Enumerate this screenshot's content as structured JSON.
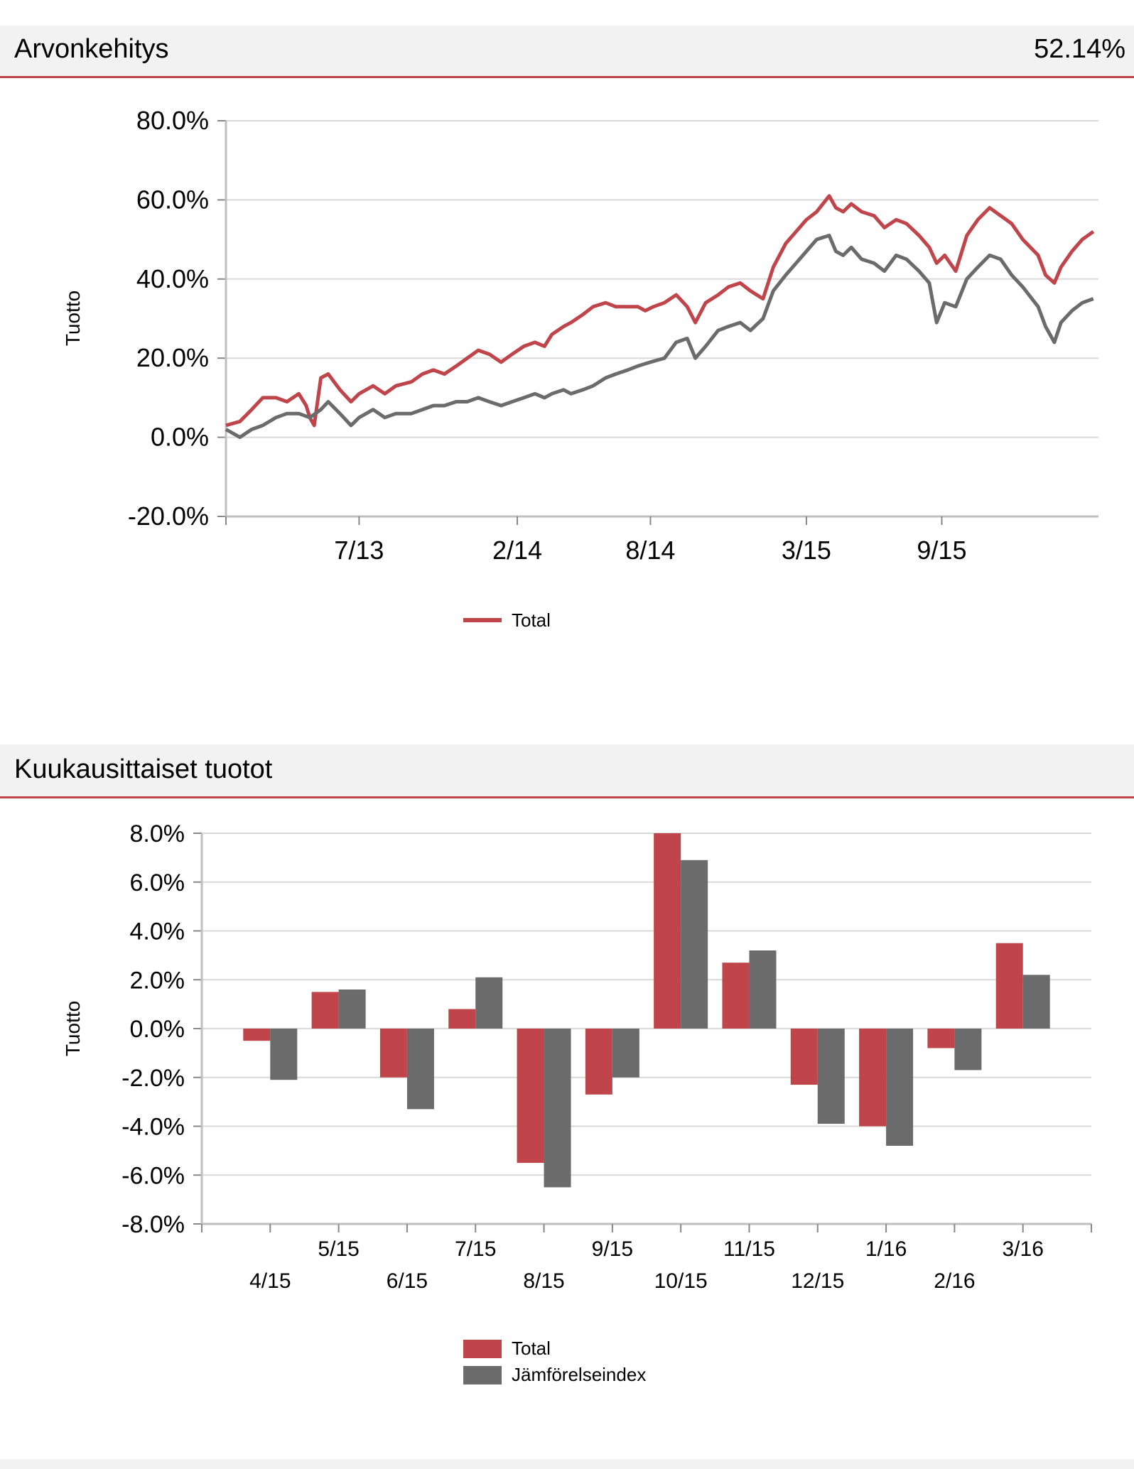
{
  "section1": {
    "title": "Arvonkehitys",
    "value": "52.14%"
  },
  "section2": {
    "title": "Kuukausittaiset tuotot"
  },
  "colors": {
    "total": "#c0454a",
    "index": "#6b6b6b",
    "grid": "#d9d9d9",
    "axis": "#bfbfbf",
    "header_bg": "#f2f2f2",
    "header_rule": "#c0454a"
  },
  "chart_data": [
    {
      "type": "line",
      "ylabel": "Tuotto",
      "ylim": [
        -20,
        80
      ],
      "yticks": [
        "80.0%",
        "60.0%",
        "40.0%",
        "20.0%",
        "0.0%",
        "-20.0%"
      ],
      "ytick_values": [
        80,
        60,
        40,
        20,
        0,
        -20
      ],
      "x_tick_labels": [
        "7/13",
        "2/14",
        "8/14",
        "3/15",
        "9/15"
      ],
      "x_tick_dates": [
        "2013-07-01",
        "2014-02-01",
        "2014-08-01",
        "2015-03-01",
        "2015-09-01"
      ],
      "x_range": [
        "2013-01-01",
        "2016-04-01"
      ],
      "grid": true,
      "legend": "bottom-center",
      "series": [
        {
          "name": "Total",
          "points": [
            [
              "2013-01-01",
              3
            ],
            [
              "2013-01-20",
              4
            ],
            [
              "2013-02-05",
              7
            ],
            [
              "2013-02-20",
              10
            ],
            [
              "2013-03-10",
              10
            ],
            [
              "2013-03-25",
              9
            ],
            [
              "2013-04-10",
              11
            ],
            [
              "2013-04-20",
              8
            ],
            [
              "2013-04-25",
              5
            ],
            [
              "2013-05-01",
              3
            ],
            [
              "2013-05-10",
              15
            ],
            [
              "2013-05-20",
              16
            ],
            [
              "2013-06-05",
              12
            ],
            [
              "2013-06-20",
              9
            ],
            [
              "2013-07-01",
              11
            ],
            [
              "2013-07-20",
              13
            ],
            [
              "2013-08-05",
              11
            ],
            [
              "2013-08-20",
              13
            ],
            [
              "2013-09-10",
              14
            ],
            [
              "2013-09-25",
              16
            ],
            [
              "2013-10-10",
              17
            ],
            [
              "2013-10-25",
              16
            ],
            [
              "2013-11-10",
              18
            ],
            [
              "2013-11-25",
              20
            ],
            [
              "2013-12-10",
              22
            ],
            [
              "2013-12-25",
              21
            ],
            [
              "2014-01-10",
              19
            ],
            [
              "2014-01-25",
              21
            ],
            [
              "2014-02-10",
              23
            ],
            [
              "2014-02-25",
              24
            ],
            [
              "2014-03-10",
              23
            ],
            [
              "2014-03-20",
              26
            ],
            [
              "2014-04-05",
              28
            ],
            [
              "2014-04-15",
              29
            ],
            [
              "2014-05-01",
              31
            ],
            [
              "2014-05-15",
              33
            ],
            [
              "2014-06-01",
              34
            ],
            [
              "2014-06-15",
              33
            ],
            [
              "2014-07-01",
              33
            ],
            [
              "2014-07-15",
              33
            ],
            [
              "2014-07-25",
              32
            ],
            [
              "2014-08-05",
              33
            ],
            [
              "2014-08-20",
              34
            ],
            [
              "2014-09-05",
              36
            ],
            [
              "2014-09-20",
              33
            ],
            [
              "2014-10-01",
              29
            ],
            [
              "2014-10-15",
              34
            ],
            [
              "2014-11-01",
              36
            ],
            [
              "2014-11-15",
              38
            ],
            [
              "2014-12-01",
              39
            ],
            [
              "2014-12-15",
              37
            ],
            [
              "2015-01-01",
              35
            ],
            [
              "2015-01-15",
              43
            ],
            [
              "2015-02-01",
              49
            ],
            [
              "2015-02-15",
              52
            ],
            [
              "2015-03-01",
              55
            ],
            [
              "2015-03-15",
              57
            ],
            [
              "2015-04-01",
              61
            ],
            [
              "2015-04-10",
              58
            ],
            [
              "2015-04-20",
              57
            ],
            [
              "2015-05-01",
              59
            ],
            [
              "2015-05-15",
              57
            ],
            [
              "2015-06-01",
              56
            ],
            [
              "2015-06-15",
              53
            ],
            [
              "2015-07-01",
              55
            ],
            [
              "2015-07-15",
              54
            ],
            [
              "2015-08-01",
              51
            ],
            [
              "2015-08-15",
              48
            ],
            [
              "2015-08-25",
              44
            ],
            [
              "2015-09-05",
              46
            ],
            [
              "2015-09-20",
              42
            ],
            [
              "2015-10-05",
              51
            ],
            [
              "2015-10-20",
              55
            ],
            [
              "2015-11-05",
              58
            ],
            [
              "2015-11-20",
              56
            ],
            [
              "2015-12-05",
              54
            ],
            [
              "2015-12-20",
              50
            ],
            [
              "2016-01-10",
              46
            ],
            [
              "2016-01-20",
              41
            ],
            [
              "2016-02-01",
              39
            ],
            [
              "2016-02-10",
              43
            ],
            [
              "2016-02-25",
              47
            ],
            [
              "2016-03-10",
              50
            ],
            [
              "2016-03-25",
              52
            ]
          ]
        },
        {
          "name": "Jämförelseindex",
          "points": [
            [
              "2013-01-01",
              2
            ],
            [
              "2013-01-20",
              0
            ],
            [
              "2013-02-05",
              2
            ],
            [
              "2013-02-20",
              3
            ],
            [
              "2013-03-10",
              5
            ],
            [
              "2013-03-25",
              6
            ],
            [
              "2013-04-10",
              6
            ],
            [
              "2013-04-25",
              5
            ],
            [
              "2013-05-10",
              7
            ],
            [
              "2013-05-20",
              9
            ],
            [
              "2013-06-05",
              6
            ],
            [
              "2013-06-20",
              3
            ],
            [
              "2013-07-01",
              5
            ],
            [
              "2013-07-20",
              7
            ],
            [
              "2013-08-05",
              5
            ],
            [
              "2013-08-20",
              6
            ],
            [
              "2013-09-10",
              6
            ],
            [
              "2013-09-25",
              7
            ],
            [
              "2013-10-10",
              8
            ],
            [
              "2013-10-25",
              8
            ],
            [
              "2013-11-10",
              9
            ],
            [
              "2013-11-25",
              9
            ],
            [
              "2013-12-10",
              10
            ],
            [
              "2013-12-25",
              9
            ],
            [
              "2014-01-10",
              8
            ],
            [
              "2014-01-25",
              9
            ],
            [
              "2014-02-10",
              10
            ],
            [
              "2014-02-25",
              11
            ],
            [
              "2014-03-10",
              10
            ],
            [
              "2014-03-20",
              11
            ],
            [
              "2014-04-05",
              12
            ],
            [
              "2014-04-15",
              11
            ],
            [
              "2014-05-01",
              12
            ],
            [
              "2014-05-15",
              13
            ],
            [
              "2014-06-01",
              15
            ],
            [
              "2014-06-15",
              16
            ],
            [
              "2014-07-01",
              17
            ],
            [
              "2014-07-15",
              18
            ],
            [
              "2014-08-01",
              19
            ],
            [
              "2014-08-20",
              20
            ],
            [
              "2014-09-05",
              24
            ],
            [
              "2014-09-20",
              25
            ],
            [
              "2014-10-01",
              20
            ],
            [
              "2014-10-15",
              23
            ],
            [
              "2014-11-01",
              27
            ],
            [
              "2014-11-15",
              28
            ],
            [
              "2014-12-01",
              29
            ],
            [
              "2014-12-15",
              27
            ],
            [
              "2015-01-01",
              30
            ],
            [
              "2015-01-15",
              37
            ],
            [
              "2015-02-01",
              41
            ],
            [
              "2015-02-15",
              44
            ],
            [
              "2015-03-01",
              47
            ],
            [
              "2015-03-15",
              50
            ],
            [
              "2015-04-01",
              51
            ],
            [
              "2015-04-10",
              47
            ],
            [
              "2015-04-20",
              46
            ],
            [
              "2015-05-01",
              48
            ],
            [
              "2015-05-15",
              45
            ],
            [
              "2015-06-01",
              44
            ],
            [
              "2015-06-15",
              42
            ],
            [
              "2015-07-01",
              46
            ],
            [
              "2015-07-15",
              45
            ],
            [
              "2015-08-01",
              42
            ],
            [
              "2015-08-15",
              39
            ],
            [
              "2015-08-25",
              29
            ],
            [
              "2015-09-05",
              34
            ],
            [
              "2015-09-20",
              33
            ],
            [
              "2015-10-05",
              40
            ],
            [
              "2015-10-20",
              43
            ],
            [
              "2015-11-05",
              46
            ],
            [
              "2015-11-20",
              45
            ],
            [
              "2015-12-05",
              41
            ],
            [
              "2015-12-20",
              38
            ],
            [
              "2016-01-10",
              33
            ],
            [
              "2016-01-20",
              28
            ],
            [
              "2016-02-01",
              24
            ],
            [
              "2016-02-10",
              29
            ],
            [
              "2016-02-25",
              32
            ],
            [
              "2016-03-10",
              34
            ],
            [
              "2016-03-25",
              35
            ]
          ]
        }
      ]
    },
    {
      "type": "bar",
      "ylabel": "Tuotto",
      "ylim": [
        -8,
        8
      ],
      "yticks": [
        "8.0%",
        "6.0%",
        "4.0%",
        "2.0%",
        "0.0%",
        "-2.0%",
        "-4.0%",
        "-6.0%",
        "-8.0%"
      ],
      "ytick_values": [
        8,
        6,
        4,
        2,
        0,
        -2,
        -4,
        -6,
        -8
      ],
      "categories": [
        "4/15",
        "5/15",
        "6/15",
        "7/15",
        "8/15",
        "9/15",
        "10/15",
        "11/15",
        "12/15",
        "1/16",
        "2/16",
        "3/16"
      ],
      "grid": true,
      "legend": "bottom-center",
      "series": [
        {
          "name": "Total",
          "values": [
            -0.5,
            1.5,
            -2.0,
            0.8,
            -5.5,
            -2.7,
            8.0,
            2.7,
            -2.3,
            -4.0,
            -0.8,
            3.5
          ]
        },
        {
          "name": "Jämförelseindex",
          "values": [
            -2.1,
            1.6,
            -3.3,
            2.1,
            -6.5,
            -2.0,
            6.9,
            3.2,
            -3.9,
            -4.8,
            -1.7,
            2.2
          ]
        }
      ]
    }
  ]
}
